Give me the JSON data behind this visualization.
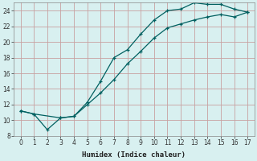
{
  "xlabel": "Humidex (Indice chaleur)",
  "background_color": "#d8f0f0",
  "grid_color": "#c8a0a0",
  "line_color": "#006060",
  "xlim": [
    -0.5,
    17.5
  ],
  "ylim": [
    8,
    25
  ],
  "xticks": [
    0,
    1,
    2,
    3,
    4,
    5,
    6,
    7,
    8,
    9,
    10,
    11,
    12,
    13,
    14,
    15,
    16,
    17
  ],
  "yticks": [
    8,
    10,
    12,
    14,
    16,
    18,
    20,
    22,
    24
  ],
  "line1_x": [
    0,
    1,
    2,
    3,
    4,
    5,
    6,
    7,
    8,
    9,
    10,
    11,
    12,
    13,
    14,
    15,
    16,
    17
  ],
  "line1_y": [
    11.2,
    10.8,
    8.8,
    10.3,
    10.5,
    12.3,
    15.0,
    18.0,
    19.0,
    21.0,
    22.8,
    24.0,
    24.2,
    25.0,
    24.8,
    24.8,
    24.2,
    23.8
  ],
  "line2_x": [
    0,
    1,
    3,
    4,
    5,
    6,
    7,
    8,
    9,
    10,
    11,
    12,
    13,
    14,
    15,
    16,
    17
  ],
  "line2_y": [
    11.2,
    10.8,
    10.3,
    10.5,
    12.0,
    13.5,
    15.2,
    17.2,
    18.8,
    20.5,
    21.8,
    22.3,
    22.8,
    23.2,
    23.5,
    23.2,
    23.8
  ]
}
